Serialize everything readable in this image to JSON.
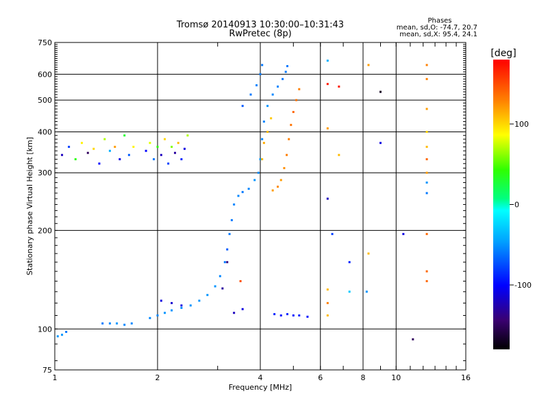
{
  "chart_data": {
    "type": "scatter",
    "title": "Tromsø 20140913 10:30:00–10:31:43",
    "subtitle": "RwPretec (8p)",
    "xlabel": "Frequency [MHz]",
    "ylabel": "Stationary phase Virtual Height [km]",
    "xscale": "log",
    "yscale": "log",
    "xlim": [
      1,
      16
    ],
    "ylim": [
      75,
      750
    ],
    "grid": true,
    "x_ticks": [
      1,
      2,
      4,
      6,
      8,
      10,
      16
    ],
    "y_ticks": [
      75,
      100,
      200,
      300,
      400,
      500,
      600,
      750
    ],
    "phase_stats": {
      "title": "Phases",
      "line_o": "mean, sd,O: -74.7, 20.7",
      "line_x": "mean, sd,X:  95.4, 24.1"
    },
    "colorbar": {
      "label": "[deg]",
      "range": [
        -180,
        180
      ],
      "ticks": [
        100,
        0,
        -100
      ],
      "colormap": "rainbow"
    },
    "series": [
      {
        "points": [
          [
            1.02,
            95,
            -50
          ],
          [
            1.05,
            96,
            -50
          ],
          [
            1.08,
            98,
            -60
          ]
        ]
      },
      {
        "points": [
          [
            1.38,
            104,
            -60
          ],
          [
            1.45,
            104,
            -55
          ],
          [
            1.52,
            104,
            -50
          ],
          [
            1.6,
            103,
            -55
          ],
          [
            1.68,
            104,
            -55
          ]
        ]
      },
      {
        "points": [
          [
            1.9,
            108,
            -55
          ],
          [
            2.0,
            110,
            -55
          ],
          [
            2.1,
            112,
            -50
          ],
          [
            2.2,
            114,
            -50
          ],
          [
            2.35,
            116,
            -50
          ],
          [
            2.5,
            118,
            -50
          ],
          [
            2.65,
            122,
            -50
          ],
          [
            2.8,
            127,
            -50
          ],
          [
            2.95,
            135,
            -50
          ],
          [
            3.05,
            145,
            -55
          ],
          [
            3.15,
            160,
            -60
          ],
          [
            3.2,
            175,
            -70
          ],
          [
            3.25,
            195,
            -60
          ],
          [
            3.3,
            215,
            -60
          ],
          [
            3.35,
            240,
            -55
          ],
          [
            3.45,
            255,
            -55
          ],
          [
            3.55,
            262,
            -60
          ],
          [
            3.7,
            268,
            -55
          ],
          [
            3.85,
            285,
            -50
          ],
          [
            3.95,
            300,
            -55
          ],
          [
            4.0,
            330,
            -50
          ],
          [
            4.05,
            380,
            -55
          ],
          [
            4.1,
            430,
            -55
          ],
          [
            4.2,
            480,
            -50
          ],
          [
            4.35,
            520,
            -55
          ],
          [
            4.5,
            550,
            -55
          ],
          [
            4.65,
            580,
            -60
          ],
          [
            4.75,
            610,
            -60
          ],
          [
            4.8,
            635,
            -60
          ]
        ]
      },
      {
        "points": [
          [
            4.35,
            265,
            120
          ],
          [
            4.5,
            272,
            125
          ],
          [
            4.6,
            285,
            120
          ],
          [
            4.7,
            310,
            125
          ],
          [
            4.78,
            340,
            130
          ],
          [
            4.85,
            380,
            130
          ],
          [
            4.92,
            420,
            135
          ],
          [
            5.0,
            460,
            140
          ],
          [
            5.1,
            500,
            135
          ],
          [
            5.2,
            540,
            130
          ]
        ]
      },
      {
        "points": [
          [
            4.05,
            330,
            110
          ],
          [
            4.1,
            370,
            115
          ],
          [
            4.2,
            400,
            110
          ],
          [
            4.3,
            440,
            105
          ]
        ]
      },
      {
        "points": [
          [
            4.4,
            111,
            -90
          ],
          [
            4.6,
            110,
            -95
          ],
          [
            4.8,
            111,
            -90
          ],
          [
            5.0,
            110,
            -95
          ],
          [
            5.2,
            110,
            -90
          ],
          [
            5.5,
            109,
            -95
          ]
        ]
      },
      {
        "points": [
          [
            2.05,
            122,
            -110
          ],
          [
            2.2,
            120,
            -115
          ],
          [
            2.35,
            118,
            -110
          ],
          [
            3.35,
            112,
            -120
          ],
          [
            3.55,
            115,
            -110
          ],
          [
            3.1,
            133,
            -130
          ],
          [
            3.2,
            160,
            -140
          ]
        ]
      },
      {
        "points": [
          [
            3.55,
            480,
            -70
          ],
          [
            3.75,
            520,
            -60
          ],
          [
            3.9,
            555,
            -55
          ],
          [
            4.0,
            600,
            -60
          ],
          [
            4.05,
            640,
            -60
          ]
        ]
      },
      {
        "points": [
          [
            1.05,
            340,
            -120
          ],
          [
            1.1,
            360,
            -80
          ],
          [
            1.15,
            330,
            40
          ],
          [
            1.2,
            370,
            90
          ],
          [
            1.25,
            345,
            -150
          ],
          [
            1.3,
            355,
            100
          ],
          [
            1.35,
            320,
            -100
          ],
          [
            1.4,
            380,
            70
          ],
          [
            1.45,
            350,
            -40
          ],
          [
            1.5,
            360,
            120
          ],
          [
            1.55,
            330,
            -110
          ],
          [
            1.6,
            390,
            30
          ],
          [
            1.65,
            340,
            -70
          ],
          [
            1.7,
            360,
            90
          ]
        ]
      },
      {
        "points": [
          [
            1.85,
            350,
            -100
          ],
          [
            1.9,
            370,
            80
          ],
          [
            1.95,
            330,
            -60
          ],
          [
            2.0,
            360,
            40
          ],
          [
            2.05,
            340,
            -120
          ],
          [
            2.1,
            380,
            100
          ],
          [
            2.15,
            320,
            -80
          ],
          [
            2.2,
            360,
            60
          ],
          [
            2.25,
            345,
            -130
          ],
          [
            2.3,
            370,
            110
          ],
          [
            2.35,
            330,
            -90
          ],
          [
            2.4,
            355,
            -110
          ],
          [
            2.45,
            390,
            70
          ]
        ]
      },
      {
        "points": [
          [
            6.3,
            660,
            -40
          ],
          [
            6.3,
            560,
            170
          ],
          [
            6.8,
            550,
            170
          ],
          [
            8.3,
            640,
            120
          ],
          [
            9.0,
            530,
            -170
          ],
          [
            9.0,
            370,
            -110
          ],
          [
            6.3,
            410,
            120
          ],
          [
            6.8,
            340,
            110
          ],
          [
            6.3,
            250,
            -120
          ],
          [
            6.5,
            195,
            -80
          ],
          [
            7.3,
            160,
            -90
          ],
          [
            8.3,
            170,
            110
          ],
          [
            10.5,
            195,
            -110
          ],
          [
            12.3,
            640,
            130
          ],
          [
            12.3,
            580,
            130
          ],
          [
            12.3,
            470,
            120
          ],
          [
            12.3,
            400,
            100
          ],
          [
            12.3,
            360,
            110
          ],
          [
            12.3,
            330,
            140
          ],
          [
            12.3,
            300,
            120
          ],
          [
            12.3,
            280,
            -50
          ],
          [
            12.3,
            260,
            -60
          ],
          [
            12.3,
            195,
            140
          ],
          [
            12.3,
            150,
            140
          ],
          [
            12.3,
            140,
            140
          ],
          [
            6.3,
            132,
            110
          ],
          [
            6.3,
            120,
            130
          ],
          [
            6.3,
            110,
            110
          ],
          [
            7.3,
            130,
            -30
          ],
          [
            8.2,
            130,
            -50
          ],
          [
            11.2,
            93,
            -150
          ],
          [
            3.5,
            140,
            150
          ]
        ]
      }
    ]
  }
}
